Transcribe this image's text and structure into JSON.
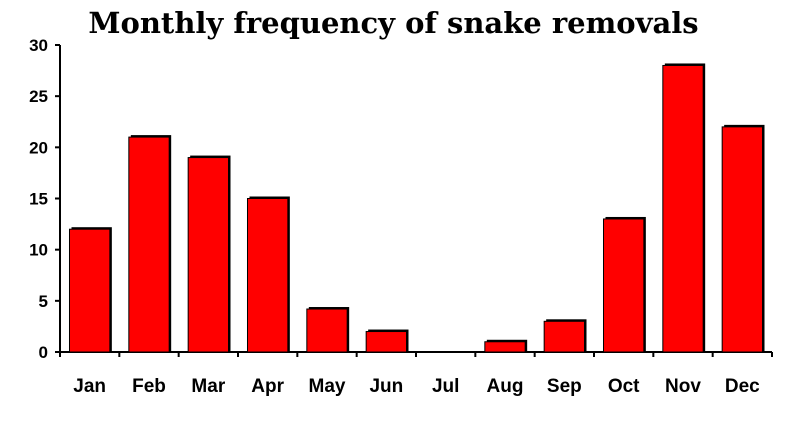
{
  "chart_data": {
    "type": "bar",
    "title": "Monthly frequency of snake removals",
    "xlabel": "",
    "ylabel": "",
    "categories": [
      "Jan",
      "Feb",
      "Mar",
      "Apr",
      "May",
      "Jun",
      "Jul",
      "Aug",
      "Sep",
      "Oct",
      "Nov",
      "Dec"
    ],
    "values": [
      12,
      21,
      19,
      15,
      4.2,
      2,
      0,
      1,
      3,
      13,
      28,
      22
    ],
    "ylim": [
      0,
      30
    ],
    "yticks": [
      0,
      5,
      10,
      15,
      20,
      25,
      30
    ],
    "ytick_labels": [
      "0",
      "5",
      "10",
      "15",
      "20",
      "25",
      "30"
    ],
    "grid": false,
    "legend": "none",
    "bar_color": "#ff0000",
    "bar_outline_color": "#000000"
  }
}
